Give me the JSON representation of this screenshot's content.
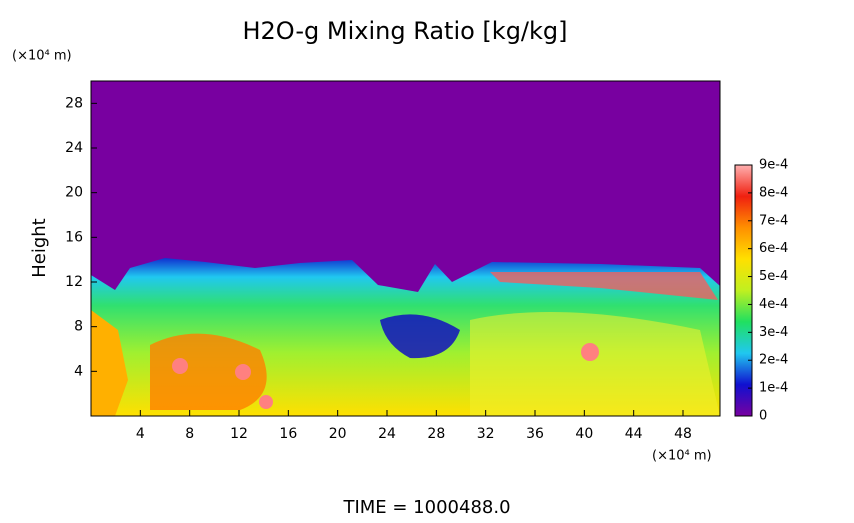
{
  "chart_data": {
    "type": "heatmap",
    "title": "H2O-g Mixing Ratio [kg/kg]",
    "y_label": "Height",
    "x_unit": "(×10⁴ m)",
    "y_unit": "(×10⁴ m)",
    "footer": "TIME = 1000488.0",
    "xlim": [
      0,
      51
    ],
    "xticks": [
      4,
      8,
      12,
      16,
      20,
      24,
      28,
      32,
      36,
      40,
      44,
      48
    ],
    "ylim": [
      0,
      30
    ],
    "yticks": [
      4,
      8,
      12,
      16,
      20,
      24,
      28
    ],
    "clim": [
      0,
      0.0009
    ],
    "cticks": [
      0,
      {
        "value": 0.0001,
        "label": "1e-4"
      },
      {
        "value": 0.0002,
        "label": "2e-4"
      },
      {
        "value": 0.0003,
        "label": "3e-4"
      },
      {
        "value": 0.0004,
        "label": "4e-4"
      },
      {
        "value": 0.0005,
        "label": "5e-4"
      },
      {
        "value": 0.0006,
        "label": "6e-4"
      },
      {
        "value": 0.0007,
        "label": "7e-4"
      },
      {
        "value": 0.0008,
        "label": "8e-4"
      },
      {
        "value": 0.0009,
        "label": "9e-4"
      }
    ],
    "colormap": [
      "#7800a0",
      "#1010d0",
      "#20c8f0",
      "#20e060",
      "#c0f020",
      "#ffe000",
      "#ff9000",
      "#f02010",
      "#ffb0b0"
    ]
  }
}
